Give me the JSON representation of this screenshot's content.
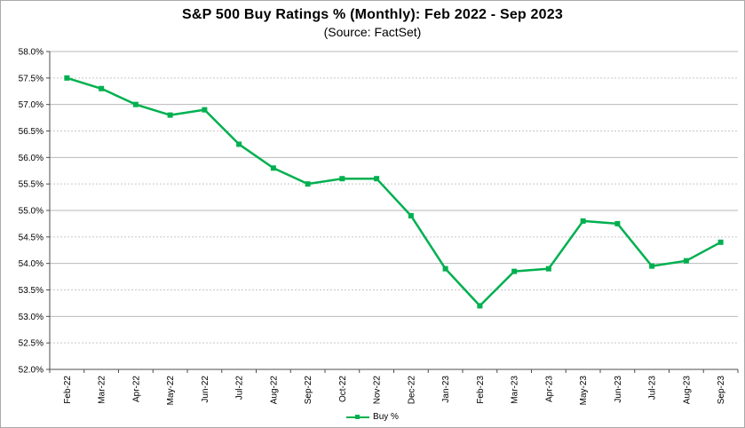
{
  "chart_data": {
    "type": "line",
    "title": "S&P 500 Buy Ratings % (Monthly): Feb 2022 - Sep 2023",
    "subtitle": "(Source: FactSet)",
    "categories": [
      "Feb-22",
      "Mar-22",
      "Apr-22",
      "May-22",
      "Jun-22",
      "Jul-22",
      "Aug-22",
      "Sep-22",
      "Oct-22",
      "Nov-22",
      "Dec-22",
      "Jan-23",
      "Feb-23",
      "Mar-23",
      "Apr-23",
      "May-23",
      "Jun-23",
      "Jul-23",
      "Aug-23",
      "Sep-23"
    ],
    "series": [
      {
        "name": "Buy %",
        "values": [
          57.5,
          57.3,
          57.0,
          56.8,
          56.9,
          56.25,
          55.8,
          55.5,
          55.6,
          55.6,
          54.9,
          53.9,
          53.2,
          53.85,
          53.9,
          54.8,
          54.75,
          53.95,
          54.05,
          54.4
        ],
        "color": "#00b050",
        "marker": "square"
      }
    ],
    "ylim": [
      52.0,
      58.0
    ],
    "y_ticks": [
      {
        "value": 58.0,
        "label": "58.0%"
      },
      {
        "value": 57.5,
        "label": "57.5%"
      },
      {
        "value": 57.0,
        "label": "57.0%"
      },
      {
        "value": 56.5,
        "label": "56.5%"
      },
      {
        "value": 56.0,
        "label": "56.0%"
      },
      {
        "value": 55.5,
        "label": "55.5%"
      },
      {
        "value": 55.0,
        "label": "55.0%"
      },
      {
        "value": 54.5,
        "label": "54.5%"
      },
      {
        "value": 54.0,
        "label": "54.0%"
      },
      {
        "value": 53.5,
        "label": "53.5%"
      },
      {
        "value": 53.0,
        "label": "53.0%"
      },
      {
        "value": 52.5,
        "label": "52.5%"
      },
      {
        "value": 52.0,
        "label": "52.0%"
      }
    ],
    "grid": "horizontal",
    "legend_position": "bottom-center"
  },
  "colors": {
    "series_green": "#00b050",
    "major_gridline": "#b9b9b9",
    "minor_gridline": "#c6c6c6",
    "axis_line": "#4d4d4d",
    "text": "#000000",
    "frame_border": "#aaaaaa"
  }
}
